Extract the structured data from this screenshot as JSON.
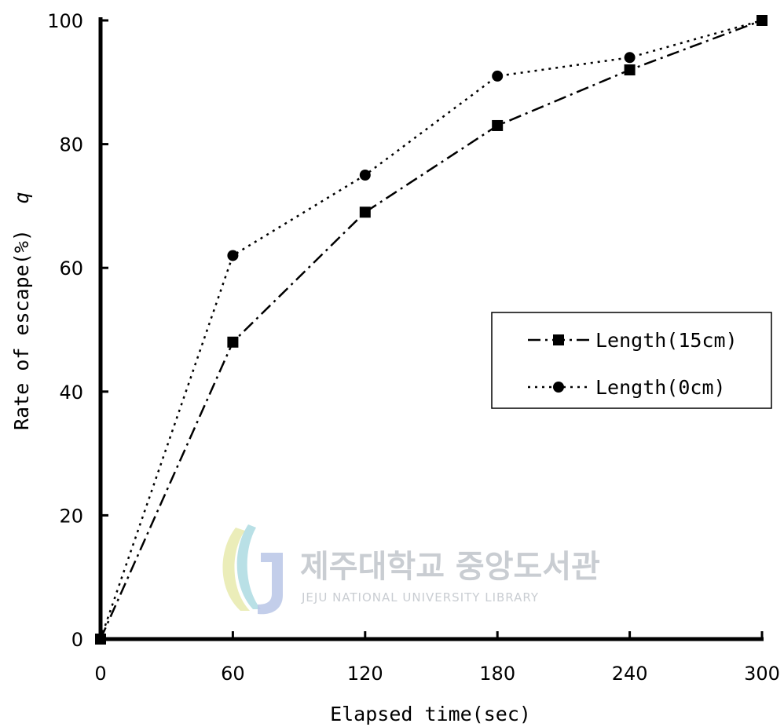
{
  "chart_data": {
    "type": "line",
    "xlabel": "Elapsed time(sec)",
    "ylabel": "Rate of escape(%)",
    "annotation": "q",
    "x": [
      0,
      60,
      120,
      180,
      240,
      300
    ],
    "xlim": [
      0,
      300
    ],
    "ylim": [
      0,
      100
    ],
    "xticks": [
      "0",
      "60",
      "120",
      "180",
      "240",
      "300"
    ],
    "yticks": [
      "0",
      "20",
      "40",
      "60",
      "80",
      "100"
    ],
    "grid": false,
    "legend_position": "center-right",
    "series": [
      {
        "name": "Length(15cm)",
        "marker": "square",
        "line": "dash-dot",
        "color": "#000000",
        "values": [
          0,
          48,
          69,
          83,
          92,
          100
        ]
      },
      {
        "name": "Length(0cm)",
        "marker": "circle",
        "line": "dotted",
        "color": "#000000",
        "values": [
          0,
          62,
          75,
          91,
          94,
          100
        ]
      }
    ]
  },
  "watermark": {
    "title": "제주대학교 중앙도서관",
    "subtitle": "JEJU NATIONAL UNIVERSITY  LIBRARY"
  }
}
